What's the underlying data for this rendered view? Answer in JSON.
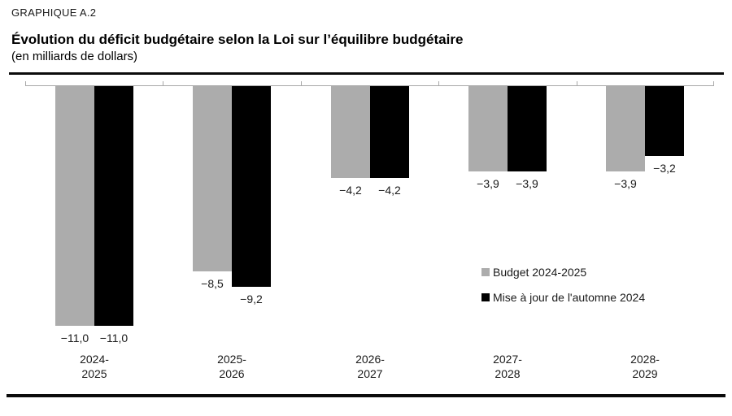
{
  "figure": {
    "kicker": "GRAPHIQUE A.2",
    "title": "Évolution du déficit budgétaire selon la Loi sur l’équilibre budgétaire",
    "subtitle": "(en milliards de dollars)"
  },
  "chart_data": {
    "type": "bar",
    "orientation": "vertical",
    "baseline": 0,
    "axis_position": "top",
    "title": "Évolution du déficit budgétaire selon la Loi sur l’équilibre budgétaire",
    "units": "en milliards de dollars",
    "categories": [
      "2024-2025",
      "2025-2026",
      "2026-2027",
      "2027-2028",
      "2028-2029"
    ],
    "category_label_lines": [
      [
        "2024-",
        "2025"
      ],
      [
        "2025-",
        "2026"
      ],
      [
        "2026-",
        "2027"
      ],
      [
        "2027-",
        "2028"
      ],
      [
        "2028-",
        "2029"
      ]
    ],
    "series": [
      {
        "name": "Budget 2024-2025",
        "color": "#acacac",
        "values": [
          -11.0,
          -8.5,
          -4.2,
          -3.9,
          -3.9
        ],
        "data_labels": [
          "−11,0",
          "−8,5",
          "−4,2",
          "−3,9",
          "−3,9"
        ]
      },
      {
        "name": "Mise à jour de l'automne 2024",
        "color": "#000000",
        "values": [
          -11.0,
          -9.2,
          -4.2,
          -3.9,
          -3.2
        ],
        "data_labels": [
          "−11,0",
          "−9,2",
          "−4,2",
          "−3,9",
          "−3,2"
        ]
      }
    ],
    "ylim": [
      -12,
      0
    ],
    "grid": false,
    "legend_position": "center-right",
    "axis_color": "#a8a8a8"
  }
}
